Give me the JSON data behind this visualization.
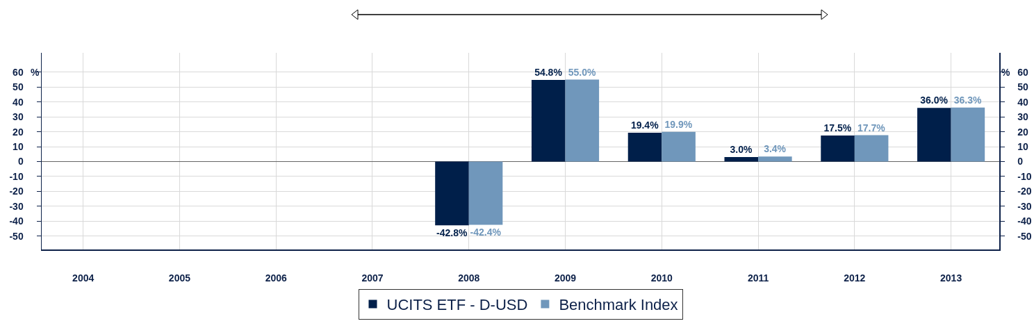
{
  "chart_data": {
    "type": "bar",
    "categories": [
      "2004",
      "2005",
      "2006",
      "2007",
      "2008",
      "2009",
      "2010",
      "2011",
      "2012",
      "2013"
    ],
    "series": [
      {
        "name": "UCITS ETF - D-USD",
        "color": "#001f4a",
        "values": [
          null,
          null,
          null,
          null,
          -42.8,
          54.8,
          19.4,
          3.0,
          17.5,
          36.0
        ],
        "value_labels": [
          null,
          null,
          null,
          null,
          "-42.8%",
          "54.8%",
          "19.4%",
          "3.0%",
          "17.5%",
          "36.0%"
        ]
      },
      {
        "name": "Benchmark Index",
        "color": "#7097bb",
        "values": [
          null,
          null,
          null,
          null,
          -42.4,
          55.0,
          19.9,
          3.4,
          17.7,
          36.3
        ],
        "value_labels": [
          null,
          null,
          null,
          null,
          "-42.4%",
          "55.0%",
          "19.9%",
          "3.4%",
          "17.7%",
          "36.3%"
        ]
      }
    ],
    "ylabel": "%",
    "y2label": "%",
    "ylim": [
      -59,
      73
    ],
    "yticks": [
      -50,
      -40,
      -30,
      -20,
      -10,
      0,
      10,
      20,
      30,
      40,
      50,
      60
    ],
    "y2lim": [
      -59,
      73
    ],
    "y2ticks": [
      -50,
      -40,
      -30,
      -20,
      -10,
      0,
      10,
      20,
      30,
      40,
      50,
      60
    ],
    "grid": true,
    "legend": "bottom"
  }
}
